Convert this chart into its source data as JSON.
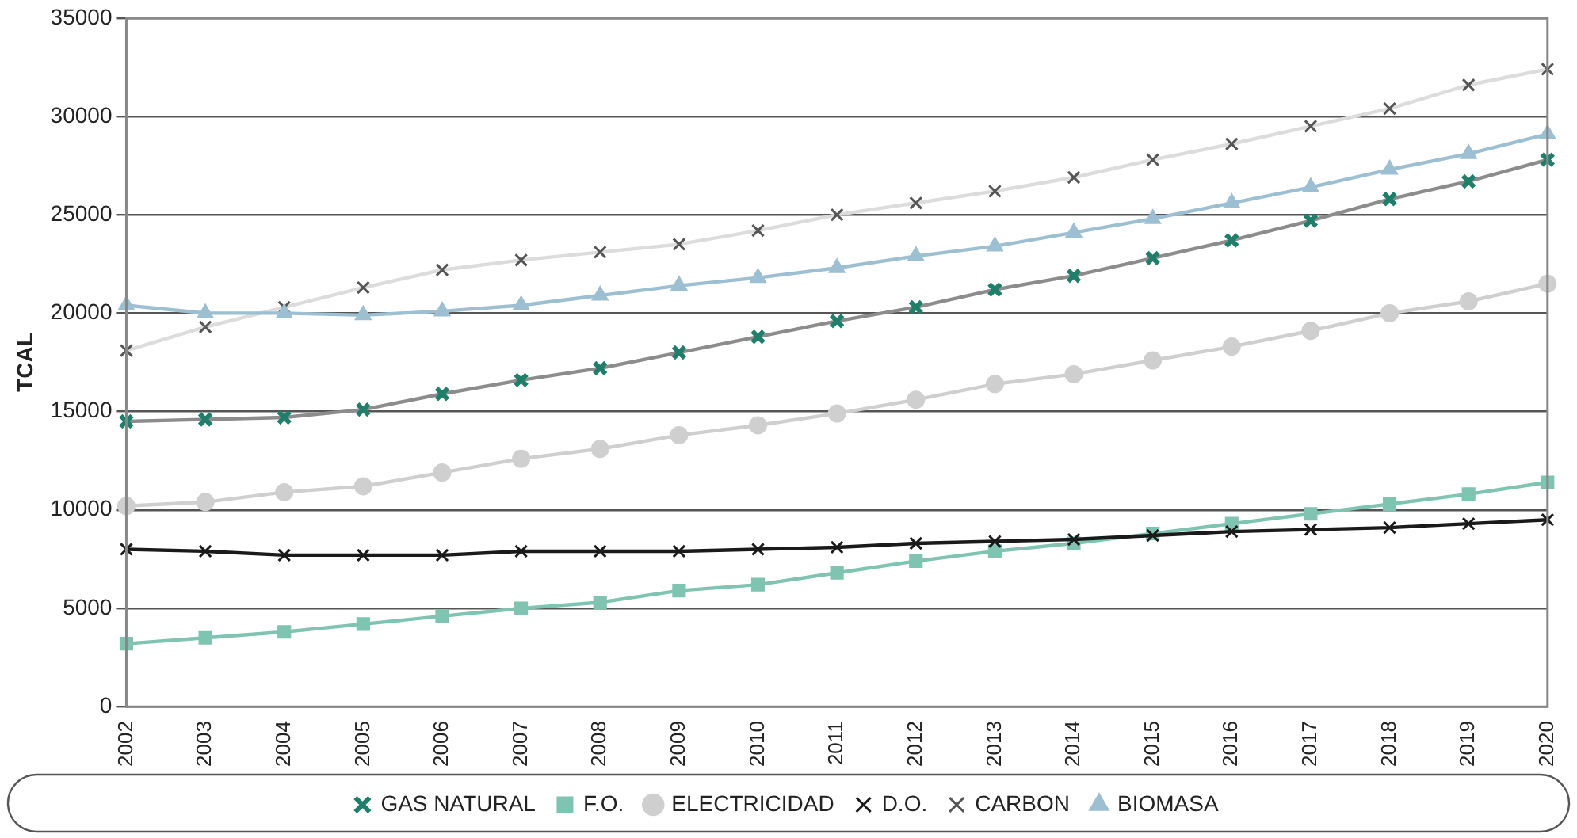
{
  "chart_data": {
    "type": "line",
    "ylabel": "TCAL",
    "categories": [
      "2002",
      "2003",
      "2004",
      "2005",
      "2006",
      "2007",
      "2008",
      "2009",
      "2010",
      "2011",
      "2012",
      "2013",
      "2014",
      "2015",
      "2016",
      "2017",
      "2018",
      "2019",
      "2020"
    ],
    "ylim": [
      0,
      35000
    ],
    "yticks": [
      0,
      5000,
      10000,
      15000,
      20000,
      25000,
      30000,
      35000
    ],
    "grid": "y",
    "legend": "bottom",
    "series": [
      {
        "name": "GAS NATURAL",
        "color": "#8c8c8c",
        "marker": "cross",
        "values": [
          14500,
          14600,
          14700,
          15100,
          15900,
          16600,
          17200,
          18000,
          18800,
          19600,
          20300,
          21200,
          21900,
          22800,
          23700,
          24700,
          25800,
          26700,
          27800
        ]
      },
      {
        "name": "F.O.",
        "color": "#7fc4b0",
        "marker": "square",
        "values": [
          3200,
          3500,
          3800,
          4200,
          4600,
          5000,
          5300,
          5900,
          6200,
          6800,
          7400,
          7900,
          8300,
          8800,
          9300,
          9800,
          10300,
          10800,
          11400
        ]
      },
      {
        "name": "ELECTRICIDAD",
        "color": "#cfcfcf",
        "marker": "circle",
        "values": [
          10200,
          10400,
          10900,
          11200,
          11900,
          12600,
          13100,
          13800,
          14300,
          14900,
          15600,
          16400,
          16900,
          17600,
          18300,
          19100,
          20000,
          20600,
          21500
        ]
      },
      {
        "name": "D.O.",
        "color": "#1a1a1a",
        "marker": "cross",
        "values": [
          8000,
          7900,
          7700,
          7700,
          7700,
          7900,
          7900,
          7900,
          8000,
          8100,
          8300,
          8400,
          8500,
          8700,
          8900,
          9000,
          9100,
          9300,
          9500
        ]
      },
      {
        "name": "CARBON",
        "color": "#dcdcdc",
        "marker": "cross",
        "values": [
          18100,
          19300,
          20300,
          21300,
          22200,
          22700,
          23100,
          23500,
          24200,
          25000,
          25600,
          26200,
          26900,
          27800,
          28600,
          29500,
          30400,
          31600,
          32400
        ]
      },
      {
        "name": "BIOMASA",
        "color": "#9dbfd2",
        "marker": "triangle",
        "values": [
          20400,
          20000,
          20000,
          19900,
          20100,
          20400,
          20900,
          21400,
          21800,
          22300,
          22900,
          23400,
          24100,
          24800,
          25600,
          26400,
          27300,
          28100,
          29100
        ]
      }
    ]
  }
}
